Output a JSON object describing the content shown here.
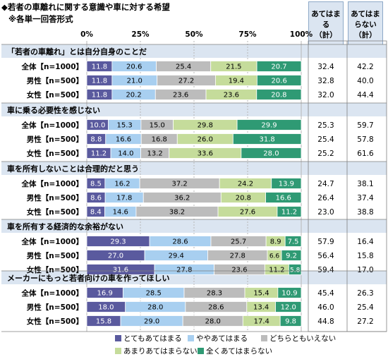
{
  "title_line1": "◆若者の車離れに関する意識や車に対する希望",
  "title_line2": "※各単一回答形式",
  "header_agree": "あてはまる\n（計）",
  "header_disagree": "あてはまらない\n（計）",
  "colors": {
    "series": [
      "#5a5a9e",
      "#a8cff0",
      "#bcbcbc",
      "#c5dc9b",
      "#2f9a74"
    ],
    "section_band": "#dbe5f1",
    "grid": "#b7b7b7"
  },
  "chart_data": {
    "type": "bar",
    "orientation": "horizontal-stacked-100",
    "xlim": [
      0,
      100
    ],
    "xticks": [
      "0%",
      "25%",
      "50%",
      "75%",
      "100%"
    ],
    "series_names": [
      "とてもあてはまる",
      "ややあてはまる",
      "どちらともいえない",
      "あまりあてはまらない",
      "全くあてはまらない"
    ],
    "legend_position": "bottom",
    "groups": [
      {
        "title": "「若者の車離れ」とは自分自身のことだ",
        "rows": [
          {
            "label": "全体【n=1000】",
            "values": [
              11.8,
              20.6,
              25.4,
              21.5,
              20.7
            ],
            "agree": "32.4",
            "disagree": "42.2"
          },
          {
            "label": "男性【n=500】",
            "values": [
              11.8,
              21.0,
              27.2,
              19.4,
              20.6
            ],
            "agree": "32.8",
            "disagree": "40.0"
          },
          {
            "label": "女性【n=500】",
            "values": [
              11.8,
              20.2,
              23.6,
              23.6,
              20.8
            ],
            "agree": "32.0",
            "disagree": "44.4"
          }
        ]
      },
      {
        "title": "車に乗る必要性を感じない",
        "rows": [
          {
            "label": "全体【n=1000】",
            "values": [
              10.0,
              15.3,
              15.0,
              29.8,
              29.9
            ],
            "agree": "25.3",
            "disagree": "59.7"
          },
          {
            "label": "男性【n=500】",
            "values": [
              8.8,
              16.6,
              16.8,
              26.0,
              31.8
            ],
            "agree": "25.4",
            "disagree": "57.8"
          },
          {
            "label": "女性【n=500】",
            "values": [
              11.2,
              14.0,
              13.2,
              33.6,
              28.0
            ],
            "agree": "25.2",
            "disagree": "61.6"
          }
        ]
      },
      {
        "title": "車を所有しないことは合理的だと思う",
        "rows": [
          {
            "label": "全体【n=1000】",
            "values": [
              8.5,
              16.2,
              37.2,
              24.2,
              13.9
            ],
            "agree": "24.7",
            "disagree": "38.1"
          },
          {
            "label": "男性【n=500】",
            "values": [
              8.6,
              17.8,
              36.2,
              20.8,
              16.6
            ],
            "agree": "26.4",
            "disagree": "37.4"
          },
          {
            "label": "女性【n=500】",
            "values": [
              8.4,
              14.6,
              38.2,
              27.6,
              11.2
            ],
            "agree": "23.0",
            "disagree": "38.8"
          }
        ]
      },
      {
        "title": "車を所有する経済的な余裕がない",
        "rows": [
          {
            "label": "全体【n=1000】",
            "values": [
              29.3,
              28.6,
              25.7,
              8.9,
              7.5
            ],
            "agree": "57.9",
            "disagree": "16.4"
          },
          {
            "label": "男性【n=500】",
            "values": [
              27.0,
              29.4,
              27.8,
              6.6,
              9.2
            ],
            "agree": "56.4",
            "disagree": "15.8"
          },
          {
            "label": "女性【n=500】",
            "values": [
              31.6,
              27.8,
              23.6,
              11.2,
              5.8
            ],
            "agree": "59.4",
            "disagree": "17.0"
          }
        ]
      },
      {
        "title": "メーカーにもっと若者向けの車を作ってほしい",
        "rows": [
          {
            "label": "全体【n=1000】",
            "values": [
              16.9,
              28.5,
              28.3,
              15.4,
              10.9
            ],
            "agree": "45.4",
            "disagree": "26.3"
          },
          {
            "label": "男性【n=500】",
            "values": [
              18.0,
              28.0,
              28.6,
              13.4,
              12.0
            ],
            "agree": "46.0",
            "disagree": "25.4"
          },
          {
            "label": "女性【n=500】",
            "values": [
              15.8,
              29.0,
              28.0,
              17.4,
              9.8
            ],
            "agree": "44.8",
            "disagree": "27.2"
          }
        ]
      }
    ]
  }
}
